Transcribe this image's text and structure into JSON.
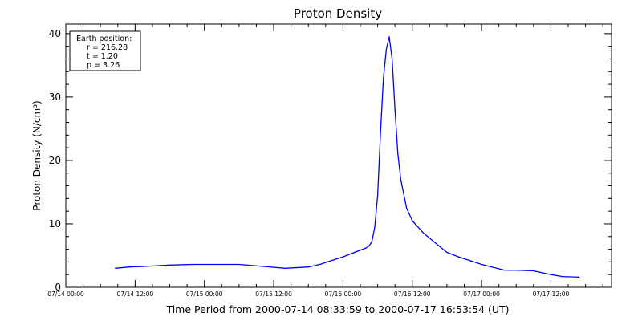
{
  "chart_data": {
    "type": "line",
    "title": "Proton Density",
    "xlabel": "Time Period from 2000-07-14 08:33:59 to 2000-07-17 16:53:54 (UT)",
    "ylabel": "Proton Density (N/cm³)",
    "xlim": [
      "2000-07-14 00:00",
      "2000-07-17 22:30"
    ],
    "ylim": [
      0,
      41.5
    ],
    "yticks": [
      0,
      10,
      20,
      30,
      40
    ],
    "xticks": [
      {
        "t": "2000-07-14 00:00",
        "label": "07/14 00:00"
      },
      {
        "t": "2000-07-14 12:00",
        "label": "07/14 12:00"
      },
      {
        "t": "2000-07-15 00:00",
        "label": "07/15 00:00"
      },
      {
        "t": "2000-07-15 12:00",
        "label": "07/15 12:00"
      },
      {
        "t": "2000-07-16 00:00",
        "label": "07/16 00:00"
      },
      {
        "t": "2000-07-16 12:00",
        "label": "07/16 12:00"
      },
      {
        "t": "2000-07-17 00:00",
        "label": "07/17 00:00"
      },
      {
        "t": "2000-07-17 12:00",
        "label": "07/17 12:00"
      }
    ],
    "grid": false,
    "legend": {
      "placement": "top-left",
      "lines": [
        "Earth position:",
        "r = 216.28",
        "t = 1.20",
        "p = 3.26"
      ]
    },
    "series": [
      {
        "color": "#0000ff",
        "x": [
          "2000-07-14 08:34",
          "2000-07-14 11:00",
          "2000-07-14 14:00",
          "2000-07-14 18:00",
          "2000-07-14 22:00",
          "2000-07-15 02:00",
          "2000-07-15 06:00",
          "2000-07-15 10:00",
          "2000-07-15 14:00",
          "2000-07-15 18:00",
          "2000-07-15 20:00",
          "2000-07-15 22:00",
          "2000-07-16 00:00",
          "2000-07-16 02:00",
          "2000-07-16 04:00",
          "2000-07-16 04:30",
          "2000-07-16 05:00",
          "2000-07-16 05:30",
          "2000-07-16 06:00",
          "2000-07-16 06:30",
          "2000-07-16 07:00",
          "2000-07-16 07:30",
          "2000-07-16 08:00",
          "2000-07-16 08:30",
          "2000-07-16 09:00",
          "2000-07-16 09:30",
          "2000-07-16 10:00",
          "2000-07-16 11:00",
          "2000-07-16 12:00",
          "2000-07-16 14:00",
          "2000-07-16 16:00",
          "2000-07-16 18:00",
          "2000-07-16 20:00",
          "2000-07-16 22:00",
          "2000-07-17 00:00",
          "2000-07-17 04:00",
          "2000-07-17 06:00",
          "2000-07-17 09:00",
          "2000-07-17 12:00",
          "2000-07-17 14:00",
          "2000-07-17 16:54"
        ],
        "y": [
          3.0,
          3.2,
          3.3,
          3.5,
          3.6,
          3.6,
          3.6,
          3.3,
          3.0,
          3.2,
          3.6,
          4.2,
          4.8,
          5.5,
          6.2,
          6.5,
          7.2,
          9.5,
          14.5,
          24.5,
          33.0,
          37.5,
          39.5,
          36.0,
          28.0,
          21.0,
          17.0,
          12.5,
          10.5,
          8.5,
          7.0,
          5.5,
          4.8,
          4.2,
          3.6,
          2.7,
          2.7,
          2.6,
          2.0,
          1.7,
          1.6
        ]
      }
    ]
  }
}
